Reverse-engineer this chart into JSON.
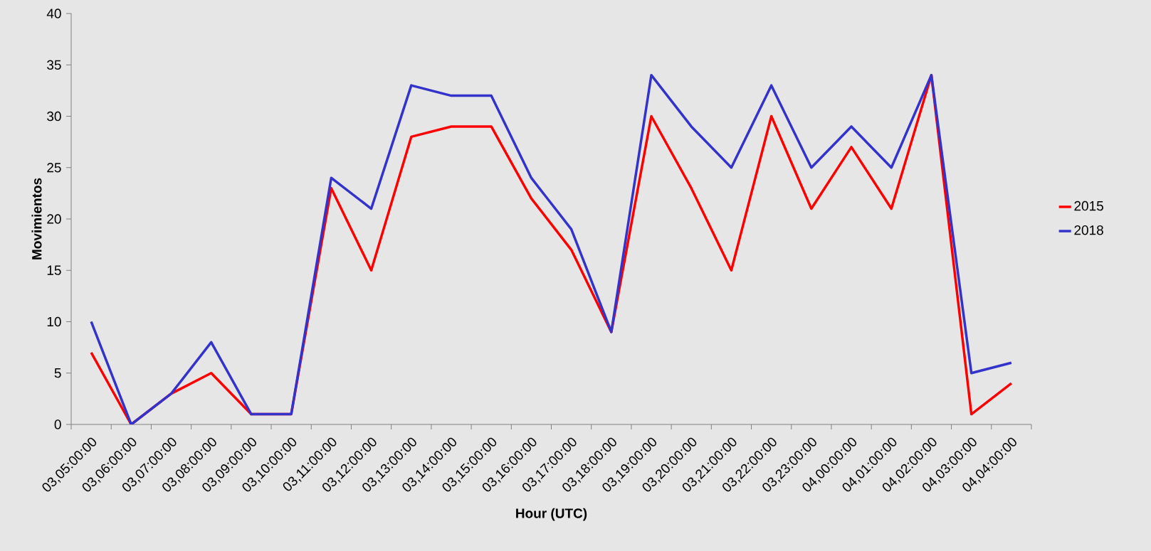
{
  "chart_data": {
    "type": "line",
    "xlabel": "Hour (UTC)",
    "ylabel": "Movimientos",
    "categories": [
      "03,05:00:00",
      "03,06:00:00",
      "03,07:00:00",
      "03,08:00:00",
      "03,09:00:00",
      "03,10:00:00",
      "03,11:00:00",
      "03,12:00:00",
      "03,13:00:00",
      "03,14:00:00",
      "03,15:00:00",
      "03,16:00:00",
      "03,17:00:00",
      "03,18:00:00",
      "03,19:00:00",
      "03,20:00:00",
      "03,21:00:00",
      "03,22:00:00",
      "03,23:00:00",
      "04,00:00:00",
      "04,01:00:00",
      "04,02:00:00",
      "04,03:00:00",
      "04,04:00:00"
    ],
    "series": [
      {
        "name": "2015",
        "color": "#ff0000",
        "values": [
          7,
          0,
          3,
          5,
          1,
          1,
          23,
          15,
          28,
          29,
          29,
          22,
          17,
          9,
          30,
          23,
          15,
          30,
          21,
          27,
          21,
          34,
          1,
          4
        ]
      },
      {
        "name": "2018",
        "color": "#3333cc",
        "values": [
          10,
          0,
          3,
          8,
          1,
          1,
          24,
          21,
          33,
          32,
          32,
          24,
          19,
          9,
          34,
          29,
          25,
          33,
          25,
          29,
          25,
          34,
          5,
          6
        ]
      }
    ],
    "ylim": [
      0,
      40
    ],
    "yticks": [
      0,
      5,
      10,
      15,
      20,
      25,
      30,
      35,
      40
    ],
    "legend": "right",
    "marker": "none",
    "line_style": "solid",
    "grid": false
  }
}
